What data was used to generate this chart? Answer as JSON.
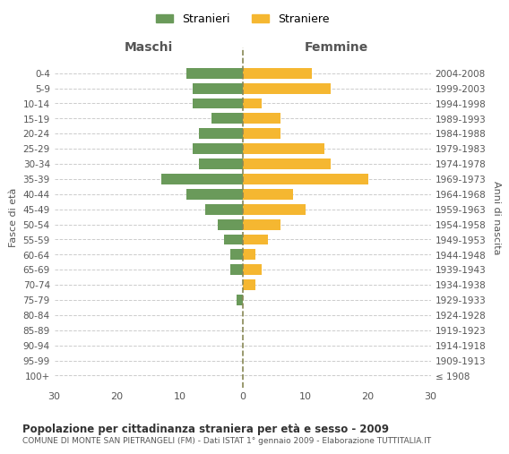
{
  "age_groups": [
    "100+",
    "95-99",
    "90-94",
    "85-89",
    "80-84",
    "75-79",
    "70-74",
    "65-69",
    "60-64",
    "55-59",
    "50-54",
    "45-49",
    "40-44",
    "35-39",
    "30-34",
    "25-29",
    "20-24",
    "15-19",
    "10-14",
    "5-9",
    "0-4"
  ],
  "birth_years": [
    "≤ 1908",
    "1909-1913",
    "1914-1918",
    "1919-1923",
    "1924-1928",
    "1929-1933",
    "1934-1938",
    "1939-1943",
    "1944-1948",
    "1949-1953",
    "1954-1958",
    "1959-1963",
    "1964-1968",
    "1969-1973",
    "1974-1978",
    "1979-1983",
    "1984-1988",
    "1989-1993",
    "1994-1998",
    "1999-2003",
    "2004-2008"
  ],
  "males": [
    0,
    0,
    0,
    0,
    0,
    1,
    0,
    2,
    2,
    3,
    4,
    6,
    9,
    13,
    7,
    8,
    7,
    5,
    8,
    8,
    9
  ],
  "females": [
    0,
    0,
    0,
    0,
    0,
    0,
    2,
    3,
    2,
    4,
    6,
    10,
    8,
    20,
    14,
    13,
    6,
    6,
    3,
    14,
    11
  ],
  "male_color": "#6a9a5a",
  "female_color": "#f5b731",
  "male_label": "Stranieri",
  "female_label": "Straniere",
  "title": "Popolazione per cittadinanza straniera per età e sesso - 2009",
  "subtitle": "COMUNE DI MONTE SAN PIETRANGELI (FM) - Dati ISTAT 1° gennaio 2009 - Elaborazione TUTTITALIA.IT",
  "xlabel_left": "Maschi",
  "xlabel_right": "Femmine",
  "ylabel_left": "Fasce di età",
  "ylabel_right": "Anni di nascita",
  "xlim": 30,
  "background_color": "#ffffff",
  "grid_color": "#cccccc",
  "dashed_line_color": "#888855"
}
